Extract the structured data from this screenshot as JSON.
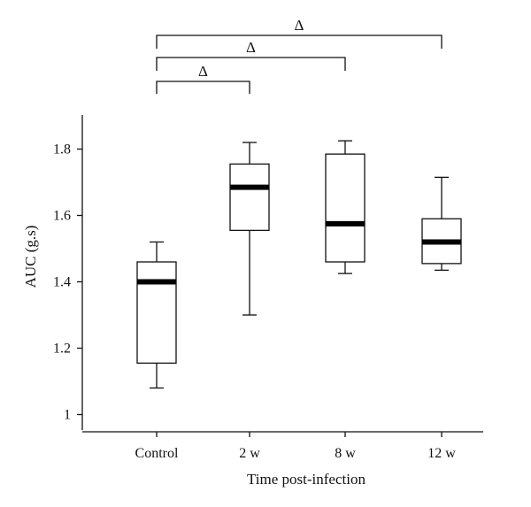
{
  "chart_data": {
    "type": "box",
    "xlabel": "Time post-infection",
    "ylabel": "AUC (g.s)",
    "ylim": [
      0.98,
      1.9
    ],
    "yticks": [
      1,
      1.2,
      1.4,
      1.6,
      1.8
    ],
    "ytick_labels": [
      "1",
      "1.2",
      "1.4",
      "1.6",
      "1.8"
    ],
    "categories": [
      "Control",
      "2 w",
      "8 w",
      "12 w"
    ],
    "boxes": [
      {
        "category": "Control",
        "min": 1.08,
        "q1": 1.155,
        "median": 1.4,
        "q3": 1.46,
        "max": 1.52
      },
      {
        "category": "2 w",
        "min": 1.3,
        "q1": 1.555,
        "median": 1.685,
        "q3": 1.755,
        "max": 1.82
      },
      {
        "category": "8 w",
        "min": 1.425,
        "q1": 1.46,
        "median": 1.575,
        "q3": 1.785,
        "max": 1.825
      },
      {
        "category": "12 w",
        "min": 1.435,
        "q1": 1.455,
        "median": 1.52,
        "q3": 1.59,
        "max": 1.715
      }
    ],
    "annotations": [
      {
        "text": "Δ",
        "from": "Control",
        "to": "2 w"
      },
      {
        "text": "Δ",
        "from": "Control",
        "to": "8 w"
      },
      {
        "text": "Δ",
        "from": "Control",
        "to": "12 w"
      }
    ]
  }
}
